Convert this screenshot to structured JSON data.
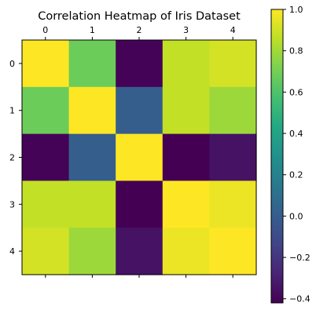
{
  "chart_data": {
    "type": "heatmap",
    "title": "Correlation Heatmap of Iris Dataset",
    "x_ticks": [
      "0",
      "1",
      "2",
      "3",
      "4"
    ],
    "y_ticks": [
      "0",
      "1",
      "2",
      "3",
      "4"
    ],
    "matrix": [
      [
        1.0,
        0.68,
        -0.41,
        0.87,
        0.91
      ],
      [
        0.68,
        1.0,
        0.0,
        0.87,
        0.79
      ],
      [
        -0.41,
        0.0,
        1.0,
        -0.42,
        -0.35
      ],
      [
        0.87,
        0.87,
        -0.42,
        1.0,
        0.96
      ],
      [
        0.91,
        0.79,
        -0.35,
        0.96,
        1.0
      ]
    ],
    "colormap": "viridis",
    "value_range": [
      -0.42,
      1.0
    ],
    "colorbar_ticks": [
      "1.0",
      "0.8",
      "0.6",
      "0.4",
      "0.2",
      "0.0",
      "−0.2",
      "−0.4"
    ],
    "colorbar_tick_values": [
      1.0,
      0.8,
      0.6,
      0.4,
      0.2,
      0.0,
      -0.2,
      -0.4
    ],
    "x_axis_position": "top",
    "grid": false
  }
}
